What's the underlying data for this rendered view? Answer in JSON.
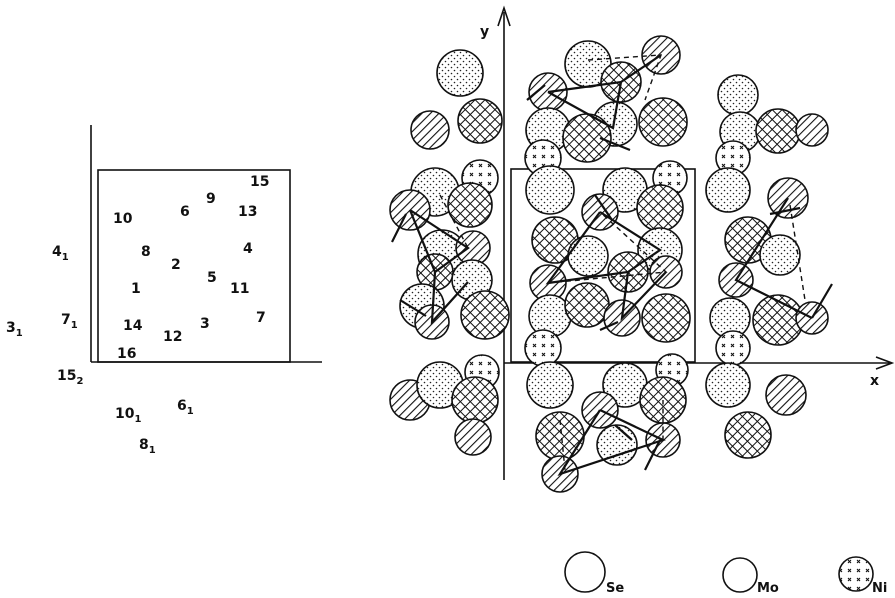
{
  "left_panel": {
    "labels": [
      {
        "id": "l15",
        "main": "15",
        "sub": ""
      },
      {
        "id": "l9",
        "main": "9",
        "sub": ""
      },
      {
        "id": "l6",
        "main": "6",
        "sub": ""
      },
      {
        "id": "l13",
        "main": "13",
        "sub": ""
      },
      {
        "id": "l10",
        "main": "10",
        "sub": ""
      },
      {
        "id": "l4",
        "main": "4",
        "sub": ""
      },
      {
        "id": "l8",
        "main": "8",
        "sub": ""
      },
      {
        "id": "l2",
        "main": "2",
        "sub": ""
      },
      {
        "id": "l5",
        "main": "5",
        "sub": ""
      },
      {
        "id": "l11",
        "main": "11",
        "sub": ""
      },
      {
        "id": "l1",
        "main": "1",
        "sub": ""
      },
      {
        "id": "l7",
        "main": "7",
        "sub": ""
      },
      {
        "id": "l14",
        "main": "14",
        "sub": ""
      },
      {
        "id": "l12",
        "main": "12",
        "sub": ""
      },
      {
        "id": "l3",
        "main": "3",
        "sub": ""
      },
      {
        "id": "l16",
        "main": "16",
        "sub": ""
      },
      {
        "id": "l4_1",
        "main": "4",
        "sub": "1"
      },
      {
        "id": "l7_1",
        "main": "7",
        "sub": "1"
      },
      {
        "id": "l3_1",
        "main": "3",
        "sub": "1"
      },
      {
        "id": "l15_2",
        "main": "15",
        "sub": "2"
      },
      {
        "id": "l10_1",
        "main": "10",
        "sub": "1"
      },
      {
        "id": "l6_1",
        "main": "6",
        "sub": "1"
      },
      {
        "id": "l8_1",
        "main": "8",
        "sub": "1"
      }
    ]
  },
  "right_panel": {
    "axis_x": "x",
    "axis_y": "y"
  },
  "legend": [
    {
      "label": "Se",
      "pattern": "plain"
    },
    {
      "label": "Mo",
      "pattern": "plain"
    },
    {
      "label": "Ni",
      "pattern": "crosses"
    }
  ]
}
